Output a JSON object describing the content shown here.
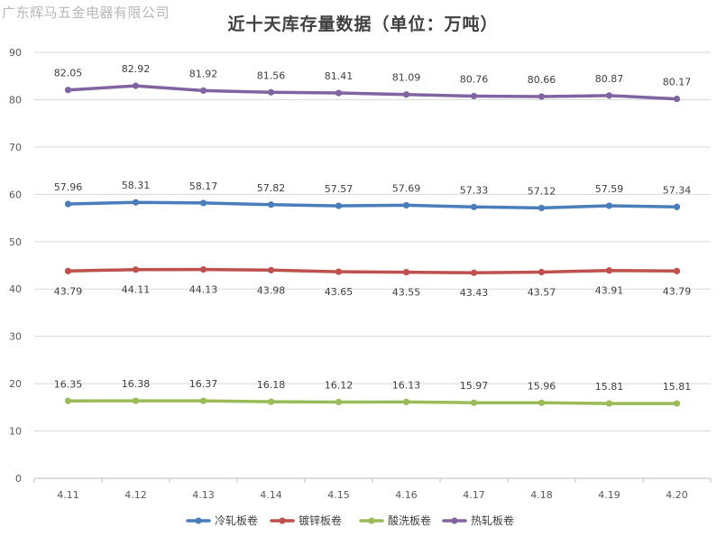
{
  "watermark": "广东辉马五金电器有限公司",
  "chart_data": {
    "type": "line",
    "title": "近十天库存量数据（单位：万吨）",
    "categories": [
      "4.11",
      "4.12",
      "4.13",
      "4.14",
      "4.15",
      "4.16",
      "4.17",
      "4.18",
      "4.19",
      "4.20"
    ],
    "ylim": [
      0,
      90
    ],
    "yticks": [
      0,
      10,
      20,
      30,
      40,
      50,
      60,
      70,
      80,
      90
    ],
    "grid": true,
    "legend_position": "bottom",
    "series": [
      {
        "name": "冷轧板卷",
        "color": "#4a7ebb",
        "label_position": "above",
        "values": [
          57.96,
          58.31,
          58.17,
          57.82,
          57.57,
          57.69,
          57.33,
          57.12,
          57.59,
          57.34
        ],
        "labels": [
          "57.96",
          "58.31",
          "58.17",
          "57.82",
          "57.57",
          "57.69",
          "57.33",
          "57.12",
          "57.59",
          "57.34"
        ]
      },
      {
        "name": "镀锌板卷",
        "color": "#c0504d",
        "label_position": "below",
        "values": [
          43.79,
          44.11,
          44.13,
          43.98,
          43.65,
          43.55,
          43.43,
          43.57,
          43.91,
          43.79
        ],
        "labels": [
          "43.79",
          "44.11",
          "44.13",
          "43.98",
          "43.65",
          "43.55",
          "43.43",
          "43.57",
          "43.91",
          "43.79"
        ]
      },
      {
        "name": "酸洗板卷",
        "color": "#9bbb59",
        "label_position": "above",
        "values": [
          16.35,
          16.38,
          16.37,
          16.18,
          16.12,
          16.13,
          15.97,
          15.96,
          15.81,
          15.81
        ],
        "labels": [
          "16.35",
          "16.38",
          "16.37",
          "16.18",
          "16.12",
          "16.13",
          "15.97",
          "15.96",
          "15.81",
          "15.81"
        ]
      },
      {
        "name": "热轧板卷",
        "color": "#8064a2",
        "label_position": "above",
        "values": [
          82.05,
          82.92,
          81.92,
          81.56,
          81.41,
          81.09,
          80.76,
          80.66,
          80.87,
          80.17
        ],
        "labels": [
          "82.05",
          "82.92",
          "81.92",
          "81.56",
          "81.41",
          "81.09",
          "80.76",
          "80.66",
          "80.87",
          "80.17"
        ]
      }
    ]
  }
}
